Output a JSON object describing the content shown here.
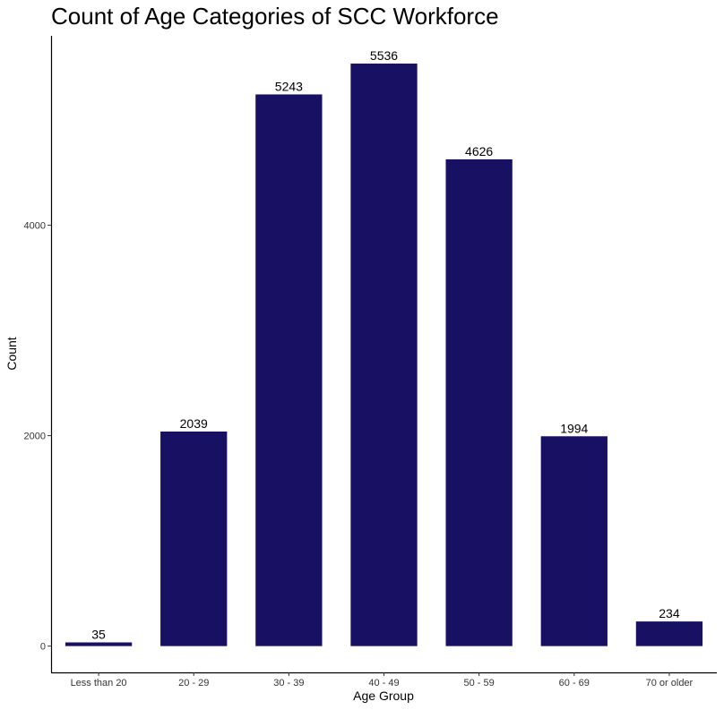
{
  "chart_data": {
    "type": "bar",
    "title": "Count of Age Categories of SCC Workforce",
    "xlabel": "Age Group",
    "ylabel": "Count",
    "categories": [
      "Less than 20",
      "20 - 29",
      "30 - 39",
      "40 - 49",
      "50 - 59",
      "60 - 69",
      "70 or older"
    ],
    "values": [
      35,
      2039,
      5243,
      5536,
      4626,
      1994,
      234
    ],
    "data_labels": [
      "35",
      "2039",
      "5243",
      "5536",
      "4626",
      "1994",
      "234"
    ],
    "yticks": [
      0,
      2000,
      4000
    ],
    "ytick_labels": [
      "0",
      "2000",
      "4000"
    ],
    "ylim": [
      -250,
      5800
    ],
    "bar_color": "#171063",
    "grid": false,
    "legend": "none"
  }
}
